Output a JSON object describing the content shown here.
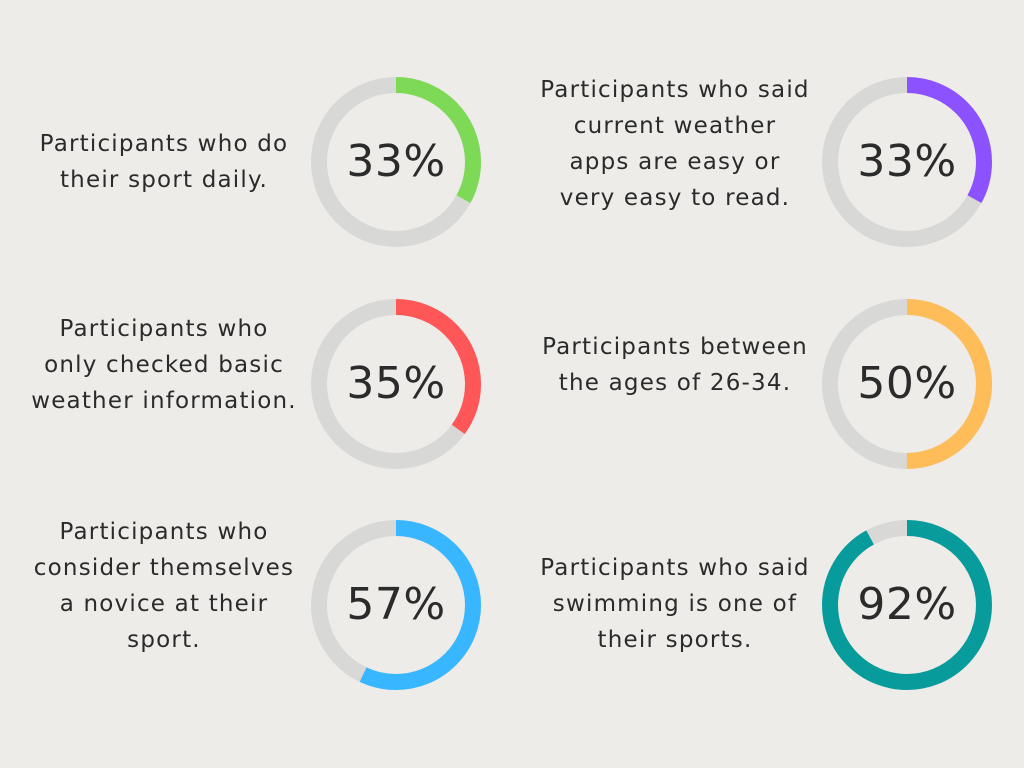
{
  "chart_data": [
    {
      "type": "donut",
      "label": "Participants who do their sport daily.",
      "value_text": "33%",
      "value": 33,
      "color": "#7ed957"
    },
    {
      "type": "donut",
      "label": "Participants who said current weather apps are easy or very easy to read.",
      "value_text": "33%",
      "value": 33,
      "color": "#8c52ff"
    },
    {
      "type": "donut",
      "label": "Participants who only checked basic weather information.",
      "value_text": "35%",
      "value": 35,
      "color": "#ff5757"
    },
    {
      "type": "donut",
      "label": "Participants between the ages of 26-34.",
      "value_text": "50%",
      "value": 50,
      "color": "#ffbd59"
    },
    {
      "type": "donut",
      "label": "Participants who consider themselves a novice at their sport.",
      "value_text": "57%",
      "value": 57,
      "color": "#38b6ff"
    },
    {
      "type": "donut",
      "label": "Participants who said swimming is one of their sports.",
      "value_text": "92%",
      "value": 92,
      "color": "#079b9b"
    }
  ],
  "track_color": "#d8d8d6"
}
